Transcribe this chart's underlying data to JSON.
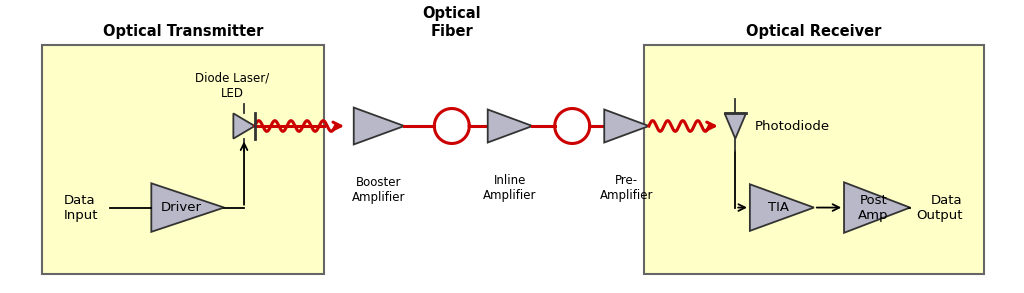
{
  "bg_color": "#ffffff",
  "box_fill": "#ffffc8",
  "box_edge": "#666666",
  "amp_fill": "#b8b8c8",
  "amp_edge": "#333333",
  "signal_color": "#cc0000",
  "arrow_color": "#000000",
  "text_color": "#000000",
  "title_left": "Optical Transmitter",
  "title_right": "Optical Receiver",
  "title_mid": "Optical\nFiber",
  "label_booster": "Booster\nAmplifier",
  "label_inline": "Inline\nAmplifier",
  "label_pre": "Pre-\nAmplifier",
  "label_driver": "Driver",
  "label_tia": "TIA",
  "label_postamp": "Post\nAmp",
  "label_diode": "Diode Laser/\nLED",
  "label_photodiode": "Photodiode",
  "label_data_input": "Data\nInput",
  "label_data_output": "Data\nOutput",
  "fig_w": 10.24,
  "fig_h": 2.93,
  "dpi": 100
}
